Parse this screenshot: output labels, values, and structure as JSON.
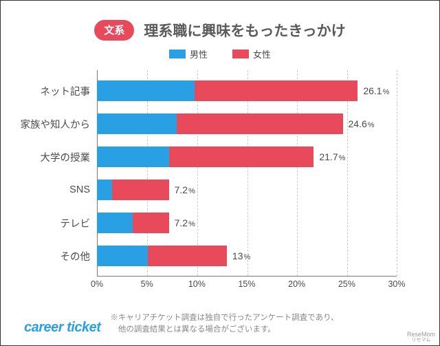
{
  "colors": {
    "male": "#2aa0e4",
    "female": "#e8495b",
    "pill_bg": "#e8495b",
    "title": "#5a5a5a",
    "text": "#4a4a4a",
    "axis": "#777777",
    "grid": "#c8c8c8",
    "brand": "#2aa0e4",
    "footnote": "#888888"
  },
  "pill_label": "文系",
  "title": "理系職に興味をもったきっかけ",
  "legend": {
    "male": "男性",
    "female": "女性"
  },
  "chart": {
    "type": "stacked-horizontal-bar",
    "xmax": 30,
    "xtick_step": 5,
    "xtick_suffix": "%",
    "categories": [
      {
        "label": "ネット記事",
        "male": 9.8,
        "female": 16.3,
        "display": "26.1"
      },
      {
        "label": "家族や知人から",
        "male": 8.0,
        "female": 16.6,
        "display": "24.6"
      },
      {
        "label": "大学の授業",
        "male": 7.2,
        "female": 14.5,
        "display": "21.7"
      },
      {
        "label": "SNS",
        "male": 1.5,
        "female": 5.7,
        "display": "7.2"
      },
      {
        "label": "テレビ",
        "male": 3.6,
        "female": 3.6,
        "display": "7.2"
      },
      {
        "label": "その他",
        "male": 5.1,
        "female": 7.9,
        "display": "13"
      }
    ]
  },
  "brand": "career ticket",
  "footnote": "※キャリアチケット調査は独自で行ったアンケート調査であり、\n　他の調査結果とは異なる場合がございます。",
  "corner_logo": {
    "en": "ReseMom",
    "jp": "リセマム"
  }
}
